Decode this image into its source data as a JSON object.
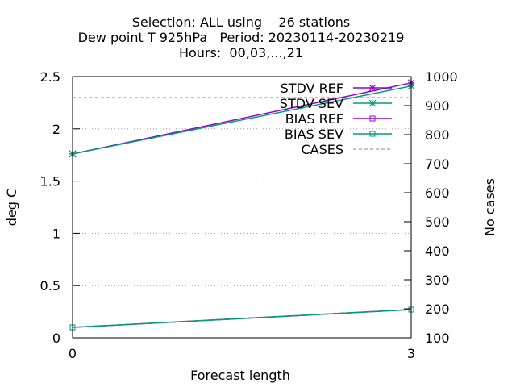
{
  "chart_data": {
    "type": "line",
    "title": [
      "Selection: ALL using    26 stations",
      "Dew point T 925hPa   Period: 20230114-20230219",
      "Hours:  00,03,...,21"
    ],
    "xlabel": "Forecast length",
    "ylabel": "deg C",
    "y2label": "No cases",
    "x": [
      0,
      3
    ],
    "xlim": [
      0,
      3
    ],
    "xticks": [
      "0",
      "3"
    ],
    "ylim": [
      0,
      2.5
    ],
    "yticks": [
      "0",
      "0.5",
      "1",
      "1.5",
      "2",
      "2.5"
    ],
    "y2lim": [
      100,
      1000
    ],
    "y2ticks": [
      "100",
      "200",
      "300",
      "400",
      "500",
      "600",
      "700",
      "800",
      "900",
      "1000"
    ],
    "grid": "horizontal dotted at left-axis ticks",
    "legend_position": "top-right",
    "series": [
      {
        "name": "STDV REF",
        "axis": "y1",
        "values": [
          1.76,
          2.44
        ],
        "color": "#9400d3",
        "marker": "star"
      },
      {
        "name": "STDV SEV",
        "axis": "y1",
        "values": [
          1.76,
          2.41
        ],
        "color": "#009e73",
        "marker": "star"
      },
      {
        "name": "BIAS REF",
        "axis": "y1",
        "values": [
          0.1,
          0.27
        ],
        "color": "#9400d3",
        "marker": "square"
      },
      {
        "name": "BIAS SEV",
        "axis": "y1",
        "values": [
          0.1,
          0.27
        ],
        "color": "#009e73",
        "marker": "square"
      },
      {
        "name": "CASES",
        "axis": "y2",
        "values": [
          928,
          928
        ],
        "color": "#a0a0a0",
        "dashed": true
      }
    ]
  }
}
